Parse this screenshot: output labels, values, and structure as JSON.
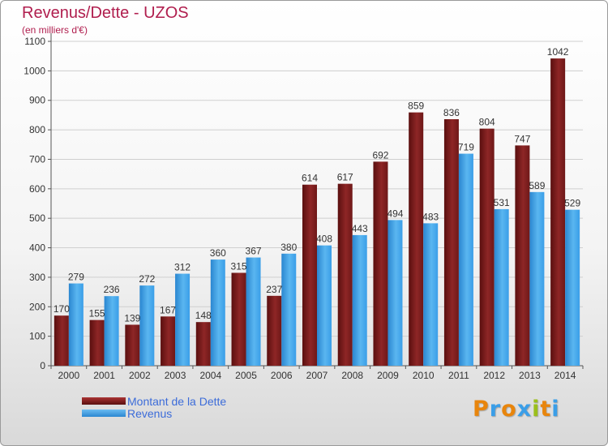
{
  "title": "Revenus/Dette - UZOS",
  "subtitle": "(en milliers d'€)",
  "colors": {
    "title": "#b01e4e",
    "dette": "#7d1c1c",
    "revenus": "#3a9ee8",
    "legend_text": "#3c6cd9"
  },
  "legend": [
    {
      "label": "Montant de la Dette",
      "color": "#7d1c1c"
    },
    {
      "label": "Revenus",
      "color": "#3a9ee8"
    }
  ],
  "logo": {
    "letters": [
      "P",
      "r",
      "o",
      "x",
      "i",
      "t",
      "i"
    ],
    "colors": [
      "#e8850c",
      "#3a9ee8",
      "#e8850c",
      "#3a9ee8",
      "#9bbf1c",
      "#e8850c",
      "#3a9ee8"
    ]
  },
  "chart_data": {
    "type": "bar",
    "title": "Revenus/Dette - UZOS",
    "subtitle": "(en milliers d'€)",
    "categories": [
      "2000",
      "2001",
      "2002",
      "2003",
      "2004",
      "2005",
      "2006",
      "2007",
      "2008",
      "2009",
      "2010",
      "2011",
      "2012",
      "2013",
      "2014"
    ],
    "series": [
      {
        "name": "Montant de la Dette",
        "values": [
          170,
          155,
          139,
          167,
          148,
          315,
          237,
          614,
          617,
          692,
          859,
          836,
          804,
          747,
          1042
        ]
      },
      {
        "name": "Revenus",
        "values": [
          279,
          236,
          272,
          312,
          360,
          367,
          380,
          408,
          443,
          494,
          483,
          719,
          531,
          589,
          529
        ]
      }
    ],
    "ylim": [
      0,
      1100
    ],
    "yticks": [
      0,
      100,
      200,
      300,
      400,
      500,
      600,
      700,
      800,
      900,
      1000,
      1100
    ],
    "grid": true,
    "legend_position": "bottom-left"
  }
}
